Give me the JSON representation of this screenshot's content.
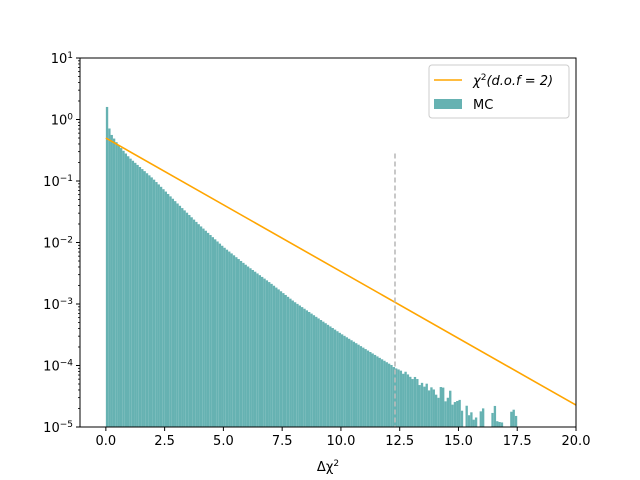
{
  "chart_data": {
    "type": "bar",
    "xlabel": "Δχ",
    "xlabel_superscript": "2",
    "xlim": [
      -1.1,
      20
    ],
    "ylim": [
      1e-05,
      10
    ],
    "yscale": "log",
    "grid": false,
    "legend_position": "top-right",
    "x_tick_labels": [
      "0.0",
      "2.5",
      "5.0",
      "7.5",
      "10.0",
      "12.5",
      "15.0",
      "17.5",
      "20.0"
    ],
    "y_tick_labels": [
      {
        "base": "10",
        "exp": "1"
      },
      {
        "base": "10",
        "exp": "0"
      },
      {
        "base": "10",
        "exp": "−1"
      },
      {
        "base": "10",
        "exp": "−2"
      },
      {
        "base": "10",
        "exp": "−3"
      },
      {
        "base": "10",
        "exp": "−4"
      },
      {
        "base": "10",
        "exp": "−5"
      }
    ],
    "series": [
      {
        "name": "χ²(d.o.f = 2)",
        "kind": "line",
        "color": "#ffa500",
        "function": "0.5*exp(-x/2)",
        "x": [
          0,
          20
        ],
        "y": [
          0.5,
          2.27e-05
        ]
      },
      {
        "name": "MC",
        "kind": "histogram",
        "color": "#66b2b2",
        "bin_width": 0.1,
        "x_start": 0.0,
        "anchors_x": [
          0.0,
          0.05,
          0.1,
          0.2,
          0.5,
          1.0,
          2.0,
          3.0,
          4.0,
          5.0,
          6.0,
          7.0,
          8.0,
          9.0,
          10.0,
          11.0,
          12.0,
          13.0,
          14.0,
          15.0,
          16.0,
          17.0,
          17.5
        ],
        "anchors_y": [
          4.0,
          1.6,
          0.85,
          0.6,
          0.4,
          0.24,
          0.11,
          0.045,
          0.019,
          0.0085,
          0.0042,
          0.0022,
          0.0011,
          0.0006,
          0.00033,
          0.00019,
          0.00011,
          6.5e-05,
          4e-05,
          2.5e-05,
          1.6e-05,
          1.2e-05,
          1.1e-05
        ]
      }
    ],
    "threshold_line": {
      "x": 12.3,
      "y_top": 0.28,
      "color": "#bbbbbb",
      "style": "dashed"
    }
  },
  "legend": {
    "line_label_prefix": "χ",
    "line_label_sup": "2",
    "line_label_suffix": "(d.o.f = 2)",
    "hist_label": "MC"
  }
}
